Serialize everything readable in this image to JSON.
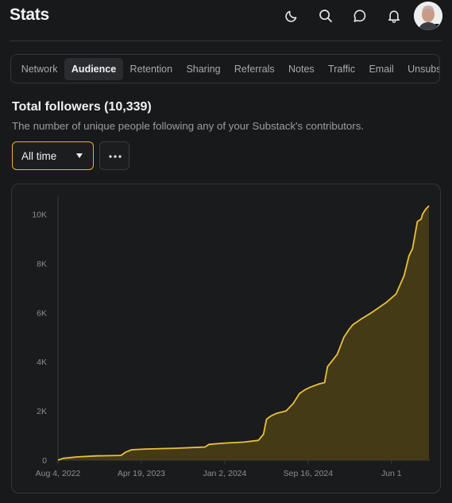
{
  "header": {
    "title": "Stats",
    "icons": [
      "moon-icon",
      "search-icon",
      "chat-bubble-icon",
      "bell-icon"
    ]
  },
  "tabs": [
    {
      "label": "Network",
      "active": false
    },
    {
      "label": "Audience",
      "active": true
    },
    {
      "label": "Retention",
      "active": false
    },
    {
      "label": "Sharing",
      "active": false
    },
    {
      "label": "Referrals",
      "active": false
    },
    {
      "label": "Notes",
      "active": false
    },
    {
      "label": "Traffic",
      "active": false
    },
    {
      "label": "Email",
      "active": false
    },
    {
      "label": "Unsubscrib",
      "active": false
    }
  ],
  "section": {
    "title": "Total followers (10,339)",
    "subtitle": "The number of unique people following any of your Substack's contributors."
  },
  "filters": {
    "period_value": "All time"
  },
  "colors": {
    "accent": "#e8c23a",
    "fill": "#4a3e16",
    "background": "#18191b"
  },
  "chart_data": {
    "type": "area",
    "x_axis_type": "date",
    "x": [
      "2022-08-04",
      "2022-08-20",
      "2022-10-01",
      "2022-12-01",
      "2023-02-15",
      "2023-03-01",
      "2023-03-20",
      "2023-05-01",
      "2023-08-01",
      "2023-11-01",
      "2023-11-15",
      "2024-01-02",
      "2024-03-01",
      "2024-04-15",
      "2024-05-01",
      "2024-05-10",
      "2024-05-16",
      "2024-05-25",
      "2024-06-10",
      "2024-07-10",
      "2024-08-01",
      "2024-08-20",
      "2024-09-05",
      "2024-09-20",
      "2024-10-20",
      "2024-11-06",
      "2024-11-15",
      "2024-12-15",
      "2025-01-05",
      "2025-01-20",
      "2025-02-01",
      "2025-03-01",
      "2025-04-01",
      "2025-05-15",
      "2025-06-15",
      "2025-07-10",
      "2025-07-25",
      "2025-08-05",
      "2025-08-20",
      "2025-09-01",
      "2025-09-05",
      "2025-09-15",
      "2025-09-25"
    ],
    "values": [
      0,
      70,
      130,
      170,
      190,
      320,
      420,
      450,
      480,
      530,
      640,
      690,
      730,
      800,
      1050,
      1650,
      1720,
      1800,
      1900,
      2000,
      2300,
      2700,
      2850,
      2950,
      3100,
      3150,
      3800,
      4300,
      5000,
      5300,
      5500,
      5750,
      6000,
      6400,
      6750,
      7500,
      8300,
      8600,
      9700,
      9800,
      10000,
      10200,
      10339
    ],
    "x_ticks": [
      "Aug 4, 2022",
      "Apr 19, 2023",
      "Jan 2, 2024",
      "Sep 16, 2024",
      "Jun 1"
    ],
    "x_tick_dates": [
      "2022-08-04",
      "2023-04-19",
      "2024-01-02",
      "2024-09-16",
      "2025-06-01"
    ],
    "y_ticks": [
      "0",
      "2K",
      "4K",
      "6K",
      "8K",
      "10K"
    ],
    "y_tick_values": [
      0,
      2000,
      4000,
      6000,
      8000,
      10000
    ],
    "ylim": [
      0,
      10339
    ],
    "xlim": [
      "2022-08-04",
      "2025-09-25"
    ],
    "grid": false,
    "legend": "none"
  }
}
